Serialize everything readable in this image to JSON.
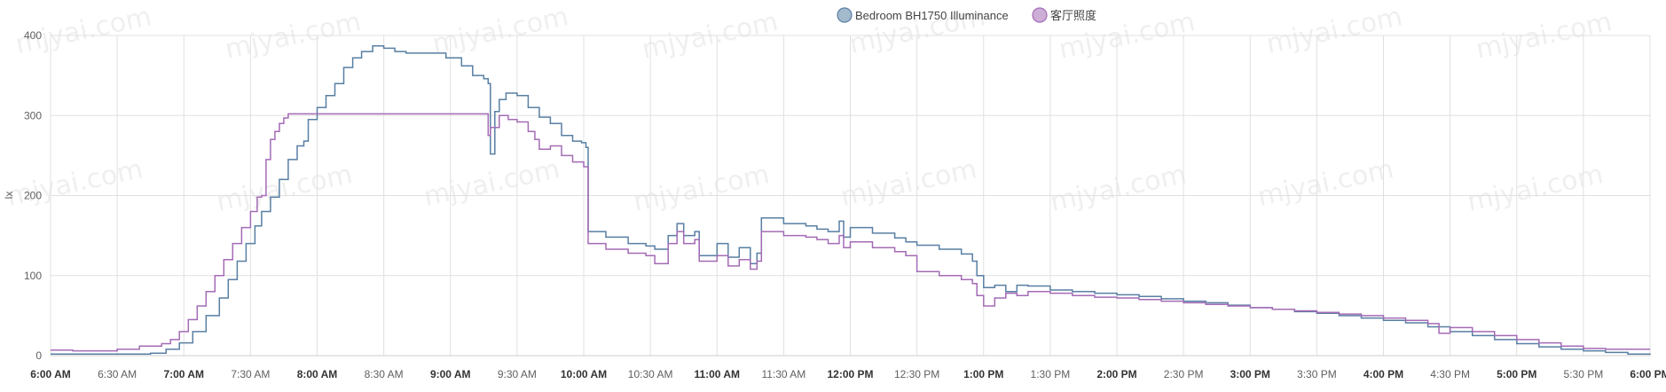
{
  "chart_data": {
    "type": "line",
    "ylabel": "lx",
    "ylim": [
      0,
      400
    ],
    "yticks": [
      0,
      100,
      200,
      300,
      400
    ],
    "xlim_minutes": [
      360,
      1080
    ],
    "xticks": [
      {
        "label": "6:00 AM",
        "minutes": 360,
        "bold": true
      },
      {
        "label": "6:30 AM",
        "minutes": 390,
        "bold": false
      },
      {
        "label": "7:00 AM",
        "minutes": 420,
        "bold": true
      },
      {
        "label": "7:30 AM",
        "minutes": 450,
        "bold": false
      },
      {
        "label": "8:00 AM",
        "minutes": 480,
        "bold": true
      },
      {
        "label": "8:30 AM",
        "minutes": 510,
        "bold": false
      },
      {
        "label": "9:00 AM",
        "minutes": 540,
        "bold": true
      },
      {
        "label": "9:30 AM",
        "minutes": 570,
        "bold": false
      },
      {
        "label": "10:00 AM",
        "minutes": 600,
        "bold": true
      },
      {
        "label": "10:30 AM",
        "minutes": 630,
        "bold": false
      },
      {
        "label": "11:00 AM",
        "minutes": 660,
        "bold": true
      },
      {
        "label": "11:30 AM",
        "minutes": 690,
        "bold": false
      },
      {
        "label": "12:00 PM",
        "minutes": 720,
        "bold": true
      },
      {
        "label": "12:30 PM",
        "minutes": 750,
        "bold": false
      },
      {
        "label": "1:00 PM",
        "minutes": 780,
        "bold": true
      },
      {
        "label": "1:30 PM",
        "minutes": 810,
        "bold": false
      },
      {
        "label": "2:00 PM",
        "minutes": 840,
        "bold": true
      },
      {
        "label": "2:30 PM",
        "minutes": 870,
        "bold": false
      },
      {
        "label": "3:00 PM",
        "minutes": 900,
        "bold": true
      },
      {
        "label": "3:30 PM",
        "minutes": 930,
        "bold": false
      },
      {
        "label": "4:00 PM",
        "minutes": 960,
        "bold": true
      },
      {
        "label": "4:30 PM",
        "minutes": 990,
        "bold": false
      },
      {
        "label": "5:00 PM",
        "minutes": 1020,
        "bold": true
      },
      {
        "label": "5:30 PM",
        "minutes": 1050,
        "bold": false
      },
      {
        "label": "6:00 PM",
        "minutes": 1080,
        "bold": true
      }
    ],
    "grid": true,
    "legend_position": "top-center",
    "step": true,
    "series": [
      {
        "name": "Bedroom BH1750 Illuminance",
        "color": "#587fa3",
        "points": [
          [
            360,
            2
          ],
          [
            385,
            2
          ],
          [
            405,
            3
          ],
          [
            412,
            8
          ],
          [
            418,
            16
          ],
          [
            424,
            30
          ],
          [
            430,
            50
          ],
          [
            436,
            72
          ],
          [
            440,
            95
          ],
          [
            444,
            118
          ],
          [
            448,
            140
          ],
          [
            452,
            162
          ],
          [
            455,
            180
          ],
          [
            459,
            198
          ],
          [
            463,
            220
          ],
          [
            467,
            245
          ],
          [
            471,
            262
          ],
          [
            474,
            268
          ],
          [
            476,
            295
          ],
          [
            480,
            310
          ],
          [
            484,
            325
          ],
          [
            488,
            340
          ],
          [
            492,
            360
          ],
          [
            496,
            372
          ],
          [
            500,
            380
          ],
          [
            505,
            387
          ],
          [
            510,
            384
          ],
          [
            515,
            380
          ],
          [
            520,
            378
          ],
          [
            530,
            378
          ],
          [
            538,
            372
          ],
          [
            545,
            362
          ],
          [
            550,
            350
          ],
          [
            555,
            346
          ],
          [
            557,
            340
          ],
          [
            558,
            252
          ],
          [
            560,
            305
          ],
          [
            562,
            320
          ],
          [
            565,
            328
          ],
          [
            570,
            325
          ],
          [
            575,
            310
          ],
          [
            580,
            298
          ],
          [
            585,
            290
          ],
          [
            590,
            275
          ],
          [
            595,
            268
          ],
          [
            599,
            266
          ],
          [
            601,
            260
          ],
          [
            602,
            155
          ],
          [
            610,
            148
          ],
          [
            620,
            140
          ],
          [
            628,
            137
          ],
          [
            632,
            133
          ],
          [
            638,
            150
          ],
          [
            642,
            165
          ],
          [
            645,
            150
          ],
          [
            650,
            155
          ],
          [
            652,
            125
          ],
          [
            660,
            140
          ],
          [
            665,
            123
          ],
          [
            670,
            135
          ],
          [
            675,
            115
          ],
          [
            678,
            128
          ],
          [
            680,
            172
          ],
          [
            690,
            165
          ],
          [
            700,
            162
          ],
          [
            705,
            158
          ],
          [
            710,
            155
          ],
          [
            715,
            168
          ],
          [
            717,
            148
          ],
          [
            720,
            160
          ],
          [
            730,
            153
          ],
          [
            740,
            147
          ],
          [
            745,
            142
          ],
          [
            750,
            138
          ],
          [
            760,
            133
          ],
          [
            770,
            127
          ],
          [
            775,
            118
          ],
          [
            777,
            100
          ],
          [
            780,
            85
          ],
          [
            785,
            88
          ],
          [
            790,
            80
          ],
          [
            795,
            88
          ],
          [
            800,
            87
          ],
          [
            810,
            82
          ],
          [
            820,
            80
          ],
          [
            830,
            78
          ],
          [
            840,
            76
          ],
          [
            850,
            74
          ],
          [
            860,
            71
          ],
          [
            870,
            68
          ],
          [
            880,
            66
          ],
          [
            890,
            63
          ],
          [
            900,
            60
          ],
          [
            910,
            58
          ],
          [
            920,
            55
          ],
          [
            930,
            53
          ],
          [
            940,
            50
          ],
          [
            950,
            47
          ],
          [
            960,
            44
          ],
          [
            970,
            41
          ],
          [
            980,
            36
          ],
          [
            990,
            30
          ],
          [
            1000,
            25
          ],
          [
            1010,
            20
          ],
          [
            1020,
            15
          ],
          [
            1030,
            11
          ],
          [
            1040,
            8
          ],
          [
            1050,
            6
          ],
          [
            1060,
            4
          ],
          [
            1070,
            2
          ],
          [
            1080,
            1
          ]
        ]
      },
      {
        "name": "客厅照度",
        "color": "#a46bb5",
        "points": [
          [
            360,
            7
          ],
          [
            370,
            6
          ],
          [
            380,
            6
          ],
          [
            390,
            8
          ],
          [
            400,
            12
          ],
          [
            410,
            15
          ],
          [
            414,
            20
          ],
          [
            418,
            30
          ],
          [
            422,
            45
          ],
          [
            426,
            62
          ],
          [
            430,
            80
          ],
          [
            434,
            100
          ],
          [
            438,
            120
          ],
          [
            442,
            140
          ],
          [
            446,
            160
          ],
          [
            450,
            180
          ],
          [
            453,
            198
          ],
          [
            455,
            200
          ],
          [
            457,
            245
          ],
          [
            459,
            270
          ],
          [
            461,
            280
          ],
          [
            463,
            290
          ],
          [
            465,
            297
          ],
          [
            467,
            302
          ],
          [
            480,
            302
          ],
          [
            500,
            302
          ],
          [
            520,
            302
          ],
          [
            540,
            302
          ],
          [
            556,
            302
          ],
          [
            557,
            275
          ],
          [
            558,
            285
          ],
          [
            562,
            300
          ],
          [
            566,
            295
          ],
          [
            570,
            292
          ],
          [
            575,
            280
          ],
          [
            578,
            270
          ],
          [
            580,
            258
          ],
          [
            585,
            262
          ],
          [
            590,
            250
          ],
          [
            595,
            242
          ],
          [
            600,
            236
          ],
          [
            602,
            140
          ],
          [
            610,
            133
          ],
          [
            620,
            128
          ],
          [
            628,
            125
          ],
          [
            632,
            115
          ],
          [
            638,
            140
          ],
          [
            642,
            155
          ],
          [
            645,
            140
          ],
          [
            650,
            145
          ],
          [
            652,
            118
          ],
          [
            660,
            125
          ],
          [
            665,
            112
          ],
          [
            670,
            120
          ],
          [
            675,
            108
          ],
          [
            678,
            118
          ],
          [
            680,
            155
          ],
          [
            690,
            150
          ],
          [
            700,
            148
          ],
          [
            705,
            145
          ],
          [
            710,
            140
          ],
          [
            715,
            150
          ],
          [
            717,
            135
          ],
          [
            720,
            142
          ],
          [
            730,
            135
          ],
          [
            740,
            130
          ],
          [
            745,
            125
          ],
          [
            750,
            105
          ],
          [
            760,
            100
          ],
          [
            770,
            95
          ],
          [
            775,
            90
          ],
          [
            777,
            75
          ],
          [
            780,
            62
          ],
          [
            785,
            72
          ],
          [
            790,
            78
          ],
          [
            795,
            75
          ],
          [
            800,
            80
          ],
          [
            810,
            78
          ],
          [
            820,
            75
          ],
          [
            830,
            73
          ],
          [
            840,
            72
          ],
          [
            850,
            70
          ],
          [
            860,
            68
          ],
          [
            870,
            66
          ],
          [
            880,
            64
          ],
          [
            890,
            62
          ],
          [
            900,
            60
          ],
          [
            910,
            58
          ],
          [
            920,
            56
          ],
          [
            930,
            54
          ],
          [
            940,
            52
          ],
          [
            950,
            50
          ],
          [
            960,
            47
          ],
          [
            970,
            44
          ],
          [
            980,
            40
          ],
          [
            985,
            28
          ],
          [
            990,
            35
          ],
          [
            1000,
            30
          ],
          [
            1010,
            25
          ],
          [
            1020,
            20
          ],
          [
            1030,
            16
          ],
          [
            1040,
            12
          ],
          [
            1050,
            9
          ],
          [
            1060,
            8
          ],
          [
            1070,
            8
          ],
          [
            1080,
            8
          ]
        ]
      }
    ]
  },
  "watermark_text": "mjyai.com"
}
